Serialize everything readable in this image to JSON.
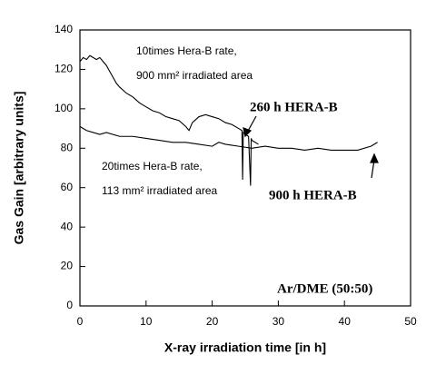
{
  "chart_data": {
    "type": "line",
    "x_label": "X-ray irradiation time [in h]",
    "y_label": "Gas Gain [arbitrary units]",
    "xlim": [
      0,
      50
    ],
    "xticks": [
      0,
      10,
      20,
      30,
      40,
      50
    ],
    "ylim": [
      0,
      140
    ],
    "yticks": [
      0,
      20,
      40,
      60,
      80,
      100,
      120,
      140
    ],
    "annotations": [
      "10times Hera-B rate,",
      "900 mm² irradiated area",
      "260 h HERA-B",
      "20times Hera-B rate,",
      "113 mm² irradiated area",
      "900 h HERA-B",
      "Ar/DME (50:50)"
    ],
    "series": [
      {
        "name": "260 h HERA-B",
        "color": "#000000",
        "x": [
          0,
          0.5,
          1,
          1.5,
          2,
          2.5,
          3,
          3.5,
          4,
          4.5,
          5,
          5.5,
          6,
          7,
          8,
          9,
          10,
          11,
          12,
          13,
          14,
          15,
          16,
          16.5,
          17,
          18,
          19,
          20,
          21,
          22,
          23,
          24,
          24.5,
          24.6,
          24.7,
          25,
          25.5,
          25.8,
          25.9,
          26,
          27
        ],
        "values": [
          124,
          126,
          125,
          127,
          126,
          125,
          126,
          124,
          122,
          119,
          116,
          113,
          111,
          108,
          106,
          103,
          101,
          99,
          98,
          96,
          95,
          94,
          91,
          89,
          93,
          96,
          97,
          96,
          95,
          93,
          92,
          90,
          89,
          64,
          88,
          87,
          86,
          61,
          85,
          84,
          82
        ]
      },
      {
        "name": "900 h HERA-B",
        "color": "#000000",
        "x": [
          0,
          1,
          2,
          3,
          4,
          6,
          8,
          10,
          12,
          14,
          16,
          18,
          20,
          21,
          22,
          24,
          26,
          28,
          30,
          32,
          34,
          36,
          38,
          40,
          42,
          44,
          45
        ],
        "values": [
          91,
          89,
          88,
          87,
          88,
          86,
          86,
          85,
          84,
          83,
          83,
          82,
          81,
          83,
          82,
          81,
          80,
          81,
          80,
          80,
          79,
          80,
          79,
          79,
          79,
          81,
          83
        ]
      }
    ]
  }
}
